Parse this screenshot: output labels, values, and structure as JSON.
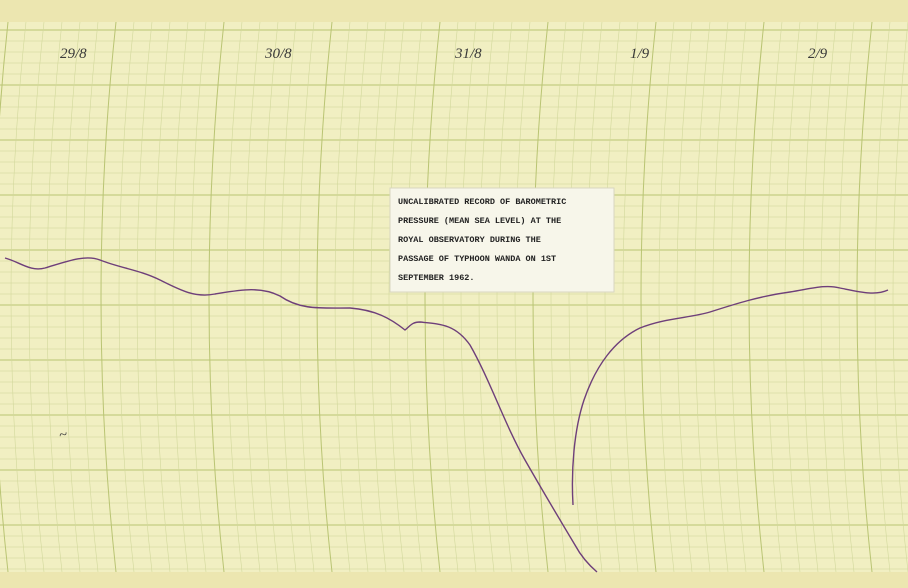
{
  "header": {
    "dates": [
      "29/8",
      "30/8",
      "31/8",
      "1/9",
      "2/9"
    ]
  },
  "label": {
    "lines": [
      "UNCALIBRATED RECORD OF BAROMETRIC",
      "PRESSURE (MEAN SEA LEVEL) AT THE",
      "ROYAL OBSERVATORY DURING THE",
      "PASSAGE OF TYPHOON WANDA ON 1ST",
      "SEPTEMBER 1962."
    ]
  }
}
